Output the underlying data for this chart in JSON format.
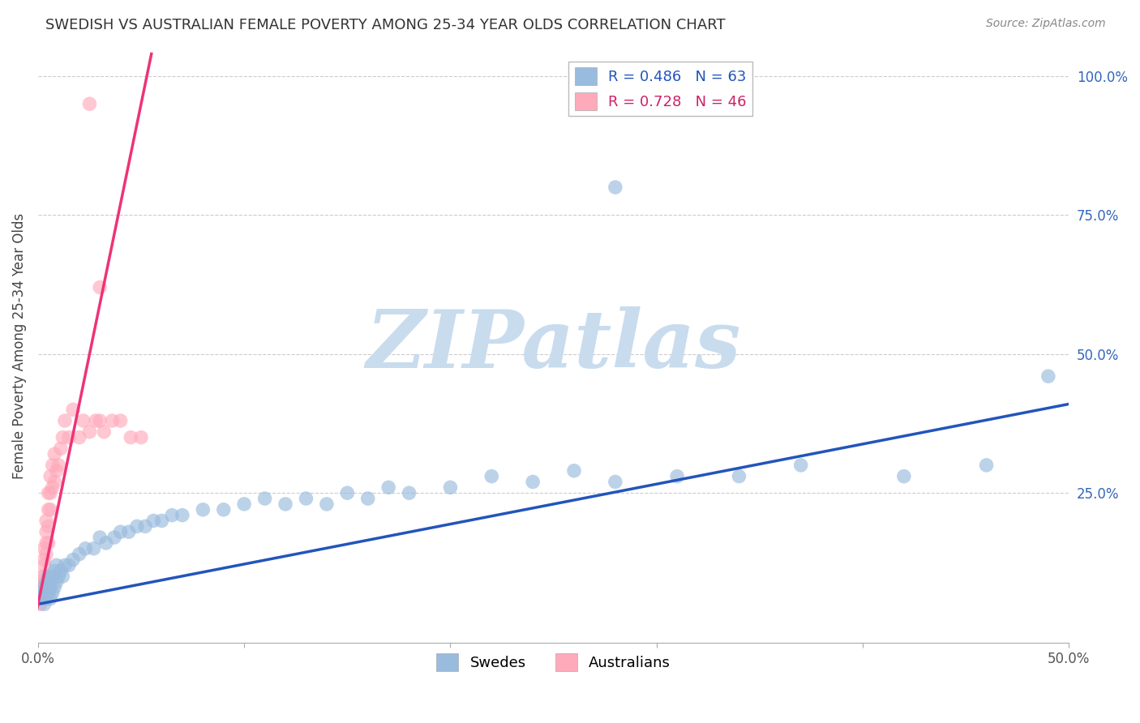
{
  "title": "SWEDISH VS AUSTRALIAN FEMALE POVERTY AMONG 25-34 YEAR OLDS CORRELATION CHART",
  "source": "Source: ZipAtlas.com",
  "ylabel": "Female Poverty Among 25-34 Year Olds",
  "xlim": [
    0.0,
    0.5
  ],
  "ylim": [
    -0.02,
    1.05
  ],
  "swedes_color": "#99BBDD",
  "australians_color": "#FFAABB",
  "swedes_line_color": "#2255BB",
  "australians_line_color": "#EE3377",
  "swedes_R": 0.486,
  "swedes_N": 63,
  "australians_R": 0.728,
  "australians_N": 46,
  "watermark": "ZIPatlas",
  "watermark_color": "#C8DCEE",
  "background_color": "#FFFFFF",
  "swedes_line_slope": 0.72,
  "swedes_line_intercept": 0.05,
  "australians_line_slope": 18.0,
  "australians_line_intercept": 0.05,
  "swedes_x": [
    0.001,
    0.002,
    0.002,
    0.003,
    0.003,
    0.004,
    0.004,
    0.004,
    0.005,
    0.005,
    0.005,
    0.006,
    0.006,
    0.006,
    0.007,
    0.007,
    0.008,
    0.008,
    0.009,
    0.009,
    0.01,
    0.011,
    0.012,
    0.013,
    0.015,
    0.017,
    0.02,
    0.023,
    0.027,
    0.03,
    0.033,
    0.037,
    0.04,
    0.044,
    0.048,
    0.052,
    0.056,
    0.06,
    0.065,
    0.07,
    0.08,
    0.09,
    0.1,
    0.11,
    0.12,
    0.13,
    0.14,
    0.15,
    0.16,
    0.17,
    0.18,
    0.2,
    0.22,
    0.24,
    0.26,
    0.28,
    0.31,
    0.34,
    0.37,
    0.42,
    0.46,
    0.49,
    0.28
  ],
  "swedes_y": [
    0.07,
    0.06,
    0.08,
    0.05,
    0.07,
    0.06,
    0.08,
    0.09,
    0.07,
    0.08,
    0.1,
    0.06,
    0.08,
    0.09,
    0.07,
    0.1,
    0.08,
    0.11,
    0.09,
    0.12,
    0.1,
    0.11,
    0.1,
    0.12,
    0.12,
    0.13,
    0.14,
    0.15,
    0.15,
    0.17,
    0.16,
    0.17,
    0.18,
    0.18,
    0.19,
    0.19,
    0.2,
    0.2,
    0.21,
    0.21,
    0.22,
    0.22,
    0.23,
    0.24,
    0.23,
    0.24,
    0.23,
    0.25,
    0.24,
    0.26,
    0.25,
    0.26,
    0.28,
    0.27,
    0.29,
    0.27,
    0.28,
    0.28,
    0.3,
    0.28,
    0.3,
    0.46,
    0.8
  ],
  "australians_x": [
    0.001,
    0.001,
    0.001,
    0.002,
    0.002,
    0.002,
    0.002,
    0.003,
    0.003,
    0.003,
    0.003,
    0.003,
    0.004,
    0.004,
    0.004,
    0.004,
    0.005,
    0.005,
    0.005,
    0.005,
    0.006,
    0.006,
    0.006,
    0.007,
    0.007,
    0.008,
    0.008,
    0.009,
    0.01,
    0.011,
    0.012,
    0.013,
    0.015,
    0.017,
    0.02,
    0.022,
    0.025,
    0.028,
    0.03,
    0.032,
    0.036,
    0.04,
    0.045,
    0.05,
    0.03,
    0.025
  ],
  "australians_y": [
    0.05,
    0.06,
    0.08,
    0.06,
    0.07,
    0.09,
    0.1,
    0.08,
    0.1,
    0.12,
    0.13,
    0.15,
    0.14,
    0.16,
    0.18,
    0.2,
    0.16,
    0.19,
    0.22,
    0.25,
    0.22,
    0.25,
    0.28,
    0.26,
    0.3,
    0.27,
    0.32,
    0.29,
    0.3,
    0.33,
    0.35,
    0.38,
    0.35,
    0.4,
    0.35,
    0.38,
    0.36,
    0.38,
    0.38,
    0.36,
    0.38,
    0.38,
    0.35,
    0.35,
    0.62,
    0.95
  ]
}
